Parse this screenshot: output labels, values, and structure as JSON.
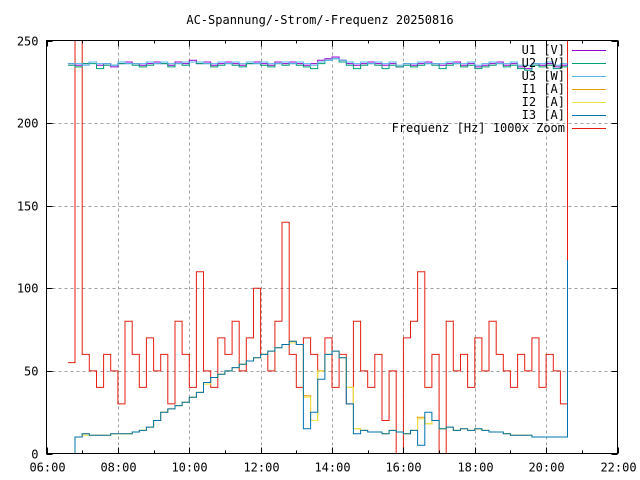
{
  "chart_data": {
    "type": "line",
    "title": "AC-Spannung/-Strom/-Frequenz 20250816",
    "xlabel": "",
    "ylabel": "",
    "xlim": [
      6,
      22
    ],
    "ylim": [
      0,
      250
    ],
    "grid": true,
    "legend_position": "top-right",
    "x_ticks": [
      6,
      8,
      10,
      12,
      14,
      16,
      18,
      20,
      22
    ],
    "x_tick_labels": [
      "06:00",
      "08:00",
      "10:00",
      "12:00",
      "14:00",
      "16:00",
      "18:00",
      "20:00",
      "22:00"
    ],
    "y_ticks": [
      0,
      50,
      100,
      150,
      200,
      250
    ],
    "y_tick_labels": [
      "0",
      "50",
      "100",
      "150",
      "200",
      "250"
    ],
    "x": [
      6.6,
      6.8,
      7.0,
      7.2,
      7.4,
      7.6,
      7.8,
      8.0,
      8.2,
      8.4,
      8.6,
      8.8,
      9.0,
      9.2,
      9.4,
      9.6,
      9.8,
      10.0,
      10.2,
      10.4,
      10.6,
      10.8,
      11.0,
      11.2,
      11.4,
      11.6,
      11.8,
      12.0,
      12.2,
      12.4,
      12.6,
      12.8,
      13.0,
      13.2,
      13.4,
      13.6,
      13.8,
      14.0,
      14.2,
      14.4,
      14.6,
      14.8,
      15.0,
      15.2,
      15.4,
      15.6,
      15.8,
      16.0,
      16.2,
      16.4,
      16.6,
      16.8,
      17.0,
      17.2,
      17.4,
      17.6,
      17.8,
      18.0,
      18.2,
      18.4,
      18.6,
      18.8,
      19.0,
      19.2,
      19.4,
      19.6,
      19.8,
      20.0,
      20.2,
      20.4,
      20.6
    ],
    "series": [
      {
        "name": "U1 [V]",
        "color": "#9400d3",
        "values": [
          236,
          235,
          236,
          237,
          235,
          236,
          234,
          236,
          237,
          236,
          235,
          236,
          237,
          236,
          235,
          237,
          236,
          238,
          236,
          237,
          235,
          236,
          237,
          236,
          235,
          236,
          237,
          236,
          235,
          237,
          236,
          237,
          236,
          235,
          236,
          238,
          239,
          240,
          238,
          236,
          235,
          236,
          237,
          236,
          235,
          236,
          234,
          236,
          235,
          236,
          237,
          236,
          235,
          236,
          237,
          235,
          236,
          234,
          235,
          236,
          237,
          235,
          236,
          234,
          233,
          236,
          235,
          236,
          234,
          235,
          236
        ]
      },
      {
        "name": "U2 [V]",
        "color": "#009e73",
        "values": [
          235,
          234,
          236,
          236,
          233,
          235,
          235,
          236,
          236,
          235,
          234,
          235,
          236,
          236,
          234,
          236,
          235,
          237,
          236,
          236,
          234,
          235,
          236,
          235,
          234,
          236,
          236,
          235,
          234,
          236,
          235,
          236,
          235,
          234,
          233,
          236,
          238,
          239,
          237,
          235,
          233,
          235,
          236,
          235,
          233,
          235,
          234,
          235,
          234,
          235,
          236,
          235,
          233,
          235,
          236,
          234,
          235,
          233,
          234,
          235,
          236,
          234,
          235,
          233,
          232,
          235,
          234,
          235,
          233,
          234,
          235
        ]
      },
      {
        "name": "U3 [W]",
        "color": "#56b4e9",
        "values": [
          236,
          236,
          235,
          237,
          236,
          236,
          235,
          237,
          236,
          236,
          236,
          237,
          236,
          237,
          236,
          236,
          237,
          237,
          237,
          236,
          236,
          237,
          236,
          237,
          236,
          237,
          236,
          237,
          236,
          236,
          237,
          236,
          237,
          236,
          235,
          237,
          238,
          239,
          238,
          237,
          236,
          237,
          236,
          237,
          236,
          237,
          235,
          236,
          236,
          237,
          236,
          236,
          236,
          237,
          236,
          236,
          237,
          235,
          236,
          237,
          236,
          236,
          237,
          235,
          235,
          236,
          236,
          237,
          235,
          236,
          236
        ]
      },
      {
        "name": "I1 [A]",
        "color": "#e69f00",
        "values": [
          0,
          10,
          12,
          11,
          11,
          11,
          12,
          12,
          12,
          13,
          14,
          16,
          20,
          25,
          27,
          29,
          31,
          34,
          37,
          43,
          46,
          48,
          50,
          52,
          54,
          56,
          58,
          60,
          62,
          64,
          66,
          68,
          66,
          35,
          20,
          50,
          60,
          62,
          58,
          40,
          15,
          14,
          13,
          13,
          12,
          14,
          13,
          12,
          14,
          22,
          18,
          20,
          15,
          16,
          14,
          15,
          14,
          15,
          14,
          13,
          13,
          12,
          11,
          11,
          11,
          10,
          10,
          10,
          10,
          10,
          10
        ]
      },
      {
        "name": "I2 [A]",
        "color": "#f0e442",
        "values": [
          0,
          10,
          11,
          11,
          11,
          11,
          12,
          12,
          12,
          13,
          14,
          16,
          20,
          25,
          27,
          29,
          31,
          34,
          37,
          42,
          46,
          48,
          50,
          52,
          54,
          56,
          58,
          60,
          62,
          64,
          66,
          67,
          66,
          34,
          20,
          50,
          60,
          62,
          58,
          40,
          15,
          14,
          13,
          13,
          12,
          14,
          13,
          12,
          14,
          21,
          18,
          20,
          15,
          16,
          14,
          15,
          14,
          15,
          14,
          13,
          13,
          12,
          11,
          11,
          11,
          10,
          10,
          10,
          10,
          10,
          10
        ]
      },
      {
        "name": "I3 [A]",
        "color": "#0072b2",
        "values": [
          0,
          10,
          12,
          11,
          11,
          11,
          12,
          12,
          12,
          13,
          14,
          16,
          20,
          25,
          27,
          29,
          31,
          34,
          37,
          43,
          46,
          48,
          50,
          52,
          54,
          56,
          58,
          60,
          62,
          64,
          66,
          68,
          66,
          15,
          25,
          45,
          60,
          62,
          58,
          30,
          12,
          14,
          13,
          13,
          12,
          14,
          13,
          12,
          14,
          5,
          25,
          20,
          15,
          16,
          14,
          15,
          14,
          15,
          14,
          13,
          13,
          12,
          11,
          11,
          11,
          10,
          10,
          10,
          10,
          10,
          117
        ]
      },
      {
        "name": "Frequenz [Hz] 1000x Zoom",
        "color": "#e51e10",
        "values": [
          55,
          250,
          60,
          50,
          40,
          60,
          50,
          30,
          80,
          60,
          40,
          70,
          50,
          60,
          30,
          80,
          60,
          40,
          110,
          50,
          40,
          70,
          60,
          80,
          50,
          70,
          100,
          60,
          50,
          80,
          140,
          60,
          40,
          70,
          60,
          50,
          70,
          40,
          60,
          30,
          80,
          50,
          40,
          60,
          20,
          50,
          0,
          70,
          80,
          110,
          40,
          60,
          0,
          80,
          50,
          60,
          40,
          70,
          50,
          80,
          60,
          50,
          40,
          60,
          50,
          70,
          40,
          60,
          50,
          30,
          250
        ]
      }
    ]
  }
}
